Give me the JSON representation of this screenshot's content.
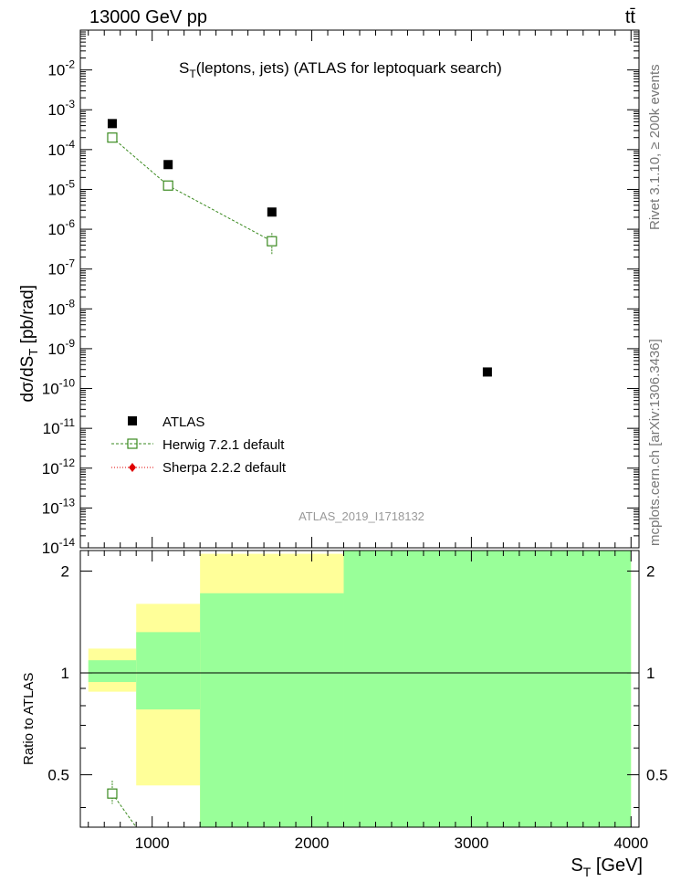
{
  "header": {
    "left": "13000 GeV pp",
    "right": "tt̄"
  },
  "side_labels": {
    "rivet": "Rivet 3.1.10, ≥ 200k events",
    "mcplots": "mcplots.cern.ch [arXiv:1306.3436]"
  },
  "chart_data": [
    {
      "type": "scatter",
      "panel": "main",
      "title": "S_T(leptons, jets) (ATLAS for leptoquark search)",
      "title_parts": {
        "main": "S",
        "sub": "T",
        "rest": "(leptons, jets) (ATLAS for leptoquark search)"
      },
      "ylabel": "dσ/dS_T [pb/rad]",
      "ylabel_parts": {
        "pre": "dσ/dS",
        "sub": "T",
        "post": " [pb/rad]"
      },
      "yscale": "log",
      "ylim": [
        1e-14,
        0.1
      ],
      "xlim": [
        550,
        4050
      ],
      "y_tick_labels": [
        {
          "base": "10",
          "exp": "-14",
          "value": 1e-14
        },
        {
          "base": "10",
          "exp": "-13",
          "value": 1e-13
        },
        {
          "base": "10",
          "exp": "-12",
          "value": 1e-12
        },
        {
          "base": "10",
          "exp": "-11",
          "value": 1e-11
        },
        {
          "base": "10",
          "exp": "-10",
          "value": 1e-10
        },
        {
          "base": "10",
          "exp": "-9",
          "value": 1e-09
        },
        {
          "base": "10",
          "exp": "-8",
          "value": 1e-08
        },
        {
          "base": "10",
          "exp": "-7",
          "value": 1e-07
        },
        {
          "base": "10",
          "exp": "-6",
          "value": 1e-06
        },
        {
          "base": "10",
          "exp": "-5",
          "value": 1e-05
        },
        {
          "base": "10",
          "exp": "-4",
          "value": 0.0001
        },
        {
          "base": "10",
          "exp": "-3",
          "value": 0.001
        },
        {
          "base": "10",
          "exp": "-2",
          "value": 0.01
        }
      ],
      "watermark": "ATLAS_2019_I1718132",
      "legend_position": "bottom-left",
      "series": [
        {
          "name": "ATLAS",
          "style": "filled-square",
          "color": "#000000",
          "x": [
            750,
            1100,
            1750,
            3100
          ],
          "y": [
            0.00045,
            4.2e-05,
            2.7e-06,
            2.6e-10
          ]
        },
        {
          "name": "Herwig 7.2.1 default",
          "style": "open-square-dashed",
          "color": "#3a8a1f",
          "x": [
            750,
            1100,
            1750
          ],
          "y": [
            0.0002,
            1.25e-05,
            5e-07
          ],
          "y_err_low": [
            0.00018,
            1.1e-05,
            2.3e-07
          ],
          "y_err_high": [
            0.00022,
            1.4e-05,
            8e-07
          ]
        },
        {
          "name": "Sherpa 2.2.2 default",
          "style": "filled-diamond-dotted",
          "color": "#e00000",
          "x": [],
          "y": []
        }
      ]
    },
    {
      "type": "bar",
      "panel": "ratio",
      "ylabel": "Ratio to ATLAS",
      "xlabel": "S_T [GeV]",
      "xlabel_parts": {
        "main": "S",
        "sub": "T",
        "post": " [GeV]"
      },
      "xlim": [
        550,
        4050
      ],
      "ylim": [
        0.35,
        2.3
      ],
      "x_tick_labels": [
        "1000",
        "2000",
        "3000",
        "4000"
      ],
      "x_ticks": [
        1000,
        2000,
        3000,
        4000
      ],
      "y_tick_labels": [
        "0.5",
        "1",
        "2"
      ],
      "y_ticks": [
        0.5,
        1,
        2
      ],
      "reference_line": 1,
      "yellow_color": "#ffff99",
      "green_color": "#99ff99",
      "bands": [
        {
          "x0": 600,
          "x1": 900,
          "yellow": [
            0.88,
            1.18
          ],
          "green": [
            0.94,
            1.09
          ]
        },
        {
          "x0": 900,
          "x1": 1300,
          "yellow": [
            0.465,
            1.6
          ],
          "green": [
            0.78,
            1.32
          ]
        },
        {
          "x0": 1300,
          "x1": 2200,
          "yellow": [
            0.3,
            2.25
          ],
          "green": [
            0.3,
            1.72
          ]
        },
        {
          "x0": 2200,
          "x1": 4000,
          "yellow": [
            0.3,
            2.4
          ],
          "green": [
            0.3,
            2.4
          ]
        }
      ],
      "herwig_ratio": [
        {
          "x": 750,
          "y": 0.44,
          "y_err_low": 0.41,
          "y_err_high": 0.48
        }
      ]
    }
  ]
}
